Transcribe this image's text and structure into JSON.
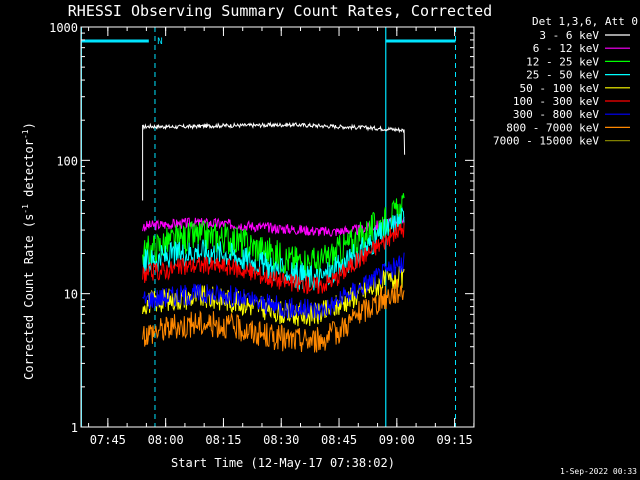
{
  "chart_data": {
    "type": "line",
    "title": "RHESSI Observing Summary Count Rates, Corrected",
    "xlabel": "Start Time (12-May-17 07:38:02)",
    "ylabel": "Corrected Count Rate (s",
    "ylabel_sup": "-1",
    "ylabel_tail": " detector",
    "ylabel_tail_sup": "-1",
    "ylabel_close": ")",
    "y_scale": "log",
    "ylim": [
      1,
      1000
    ],
    "y_ticks": [
      {
        "value": 1,
        "label": "1"
      },
      {
        "value": 10,
        "label": "10"
      },
      {
        "value": 100,
        "label": "100"
      },
      {
        "value": 1000,
        "label": "1000"
      }
    ],
    "x_unit": "minutes since 07:38:02",
    "xlim": [
      0,
      102
    ],
    "x_ticks": [
      {
        "value": 6.97,
        "label": "07:45"
      },
      {
        "value": 21.97,
        "label": "08:00"
      },
      {
        "value": 36.97,
        "label": "08:15"
      },
      {
        "value": 51.97,
        "label": "08:30"
      },
      {
        "value": 66.97,
        "label": "08:45"
      },
      {
        "value": 81.97,
        "label": "09:00"
      },
      {
        "value": 96.97,
        "label": "09:15"
      }
    ],
    "legend_header": "Det 1,3,6, Att 0",
    "legend_position": "right-outside",
    "series": [
      {
        "name": "3 - 6 keV",
        "color": "#ffffff",
        "x": [
          16,
          18,
          25,
          35,
          45,
          55,
          65,
          75,
          80,
          84
        ],
        "y": [
          178,
          180,
          178,
          182,
          183,
          185,
          180,
          175,
          172,
          168
        ]
      },
      {
        "name": "6 - 12 keV",
        "color": "#ff00ff",
        "x": [
          16,
          22,
          30,
          40,
          50,
          58,
          64,
          72,
          78,
          82,
          84
        ],
        "y": [
          32,
          33,
          34,
          33,
          31,
          30,
          29,
          30,
          33,
          36,
          37
        ]
      },
      {
        "name": "12 - 25 keV",
        "color": "#00ff00",
        "x": [
          16,
          22,
          30,
          38,
          46,
          54,
          62,
          66,
          72,
          78,
          82,
          84
        ],
        "y": [
          20,
          24,
          27,
          26,
          22,
          18,
          17,
          20,
          26,
          34,
          40,
          45
        ]
      },
      {
        "name": "25 - 50 keV",
        "color": "#00ffff",
        "x": [
          16,
          22,
          30,
          38,
          46,
          54,
          62,
          66,
          72,
          78,
          82,
          84
        ],
        "y": [
          17,
          19,
          21,
          20,
          17,
          14,
          13,
          15,
          20,
          28,
          34,
          38
        ]
      },
      {
        "name": "50 - 100 keV",
        "color": "#ffff00",
        "x": [
          16,
          22,
          30,
          38,
          46,
          54,
          62,
          66,
          72,
          78,
          82,
          84
        ],
        "y": [
          8.5,
          9,
          9.5,
          9,
          8,
          7,
          7,
          8,
          10,
          12,
          13,
          13
        ]
      },
      {
        "name": "100 - 300 keV",
        "color": "#ff0000",
        "x": [
          16,
          22,
          30,
          38,
          46,
          54,
          62,
          66,
          72,
          78,
          82,
          84
        ],
        "y": [
          14,
          15,
          16.5,
          16,
          14,
          12,
          11.5,
          13,
          18,
          24,
          29,
          31
        ]
      },
      {
        "name": "300 - 800 keV",
        "color": "#0000ff",
        "x": [
          16,
          22,
          30,
          38,
          46,
          54,
          62,
          66,
          72,
          78,
          82,
          84
        ],
        "y": [
          9,
          9.5,
          10,
          9.8,
          8.5,
          7.8,
          7.5,
          8.5,
          11,
          14,
          16,
          17
        ]
      },
      {
        "name": "800 - 7000 keV",
        "color": "#ff8800",
        "x": [
          16,
          22,
          30,
          38,
          46,
          54,
          62,
          66,
          72,
          78,
          82,
          84
        ],
        "y": [
          5,
          5.5,
          6,
          5.8,
          5,
          4.5,
          4.5,
          5,
          7,
          9,
          10.5,
          11
        ]
      },
      {
        "name": "7000 - 15000 keV",
        "color": "#808000",
        "x": [],
        "y": []
      }
    ],
    "annotations": [
      {
        "text": "N"
      }
    ]
  },
  "footer": {
    "timestamp": "1-Sep-2022 00:33"
  }
}
